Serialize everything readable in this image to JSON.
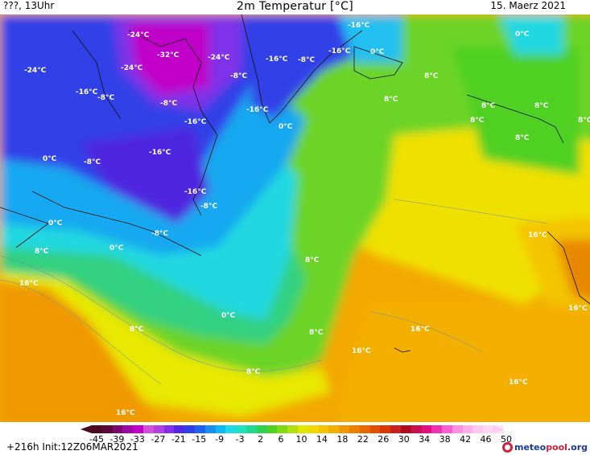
{
  "header": {
    "left": "???, 13Uhr",
    "title": "2m Temperatur [°C]",
    "date": "15. Maerz 2021"
  },
  "map_labels": [
    {
      "text": "-24°C"
    },
    {
      "text": "-16°C"
    },
    {
      "text": "-32°C"
    },
    {
      "text": "-24°C"
    },
    {
      "text": "-24°C"
    },
    {
      "text": "-24°C"
    },
    {
      "text": "-16°C"
    },
    {
      "text": "-8°C"
    },
    {
      "text": "-16°C"
    },
    {
      "text": "-8°C"
    },
    {
      "text": "-8°C"
    },
    {
      "text": "0°C"
    },
    {
      "text": "0°C"
    },
    {
      "text": "-16°C"
    },
    {
      "text": "-8°C"
    },
    {
      "text": "-24°C"
    },
    {
      "text": "-16°C"
    },
    {
      "text": "-16°C"
    },
    {
      "text": "0°C"
    },
    {
      "text": "8°C"
    },
    {
      "text": "8°C"
    },
    {
      "text": "8°C"
    },
    {
      "text": "8°C"
    },
    {
      "text": "8°C"
    },
    {
      "text": "8°C"
    },
    {
      "text": "8°C"
    },
    {
      "text": "0°C"
    },
    {
      "text": "-8°C"
    },
    {
      "text": "-16°C"
    },
    {
      "text": "-16°C"
    },
    {
      "text": "-8°C"
    },
    {
      "text": "0°C"
    },
    {
      "text": "-8°C"
    },
    {
      "text": "0°C"
    },
    {
      "text": "8°C"
    },
    {
      "text": "16°C"
    },
    {
      "text": "16°C"
    },
    {
      "text": "8°C"
    },
    {
      "text": "8°C"
    },
    {
      "text": "0°C"
    },
    {
      "text": "8°C"
    },
    {
      "text": "16°C"
    },
    {
      "text": "16°C"
    },
    {
      "text": "16°C"
    },
    {
      "text": "8°C"
    },
    {
      "text": "16°C"
    },
    {
      "text": "16°C"
    }
  ],
  "colorbar": {
    "ticks": [
      "-45",
      "-39",
      "-33",
      "-27",
      "-21",
      "-15",
      "-9",
      "-3",
      "2",
      "6",
      "10",
      "14",
      "18",
      "22",
      "26",
      "30",
      "34",
      "38",
      "42",
      "46",
      "50"
    ],
    "colors": [
      "#4b0a20",
      "#5a0a3c",
      "#7a0a6e",
      "#9a0aa0",
      "#c000c8",
      "#d050d8",
      "#b040e0",
      "#8030e8",
      "#5028e0",
      "#3040e8",
      "#2060f0",
      "#1890f0",
      "#10b8f0",
      "#20d8e8",
      "#20e0c0",
      "#20d890",
      "#30d050",
      "#50d020",
      "#80d810",
      "#b0e010",
      "#e0e800",
      "#f0d800",
      "#f4c400",
      "#f4b000",
      "#f09800",
      "#ec8000",
      "#e86800",
      "#e05000",
      "#d83800",
      "#c82020",
      "#b00c20",
      "#c81050",
      "#e01080",
      "#f030b0",
      "#f860d0",
      "#ff90e0",
      "#ffb0ea",
      "#ffc8f0",
      "#ffd8f4",
      "#ffe4f8"
    ]
  },
  "footer": {
    "run": "+216h  Init:12Z06MAR2021",
    "brand_a": "meteo",
    "brand_b": "pool",
    "brand_c": ".org"
  }
}
